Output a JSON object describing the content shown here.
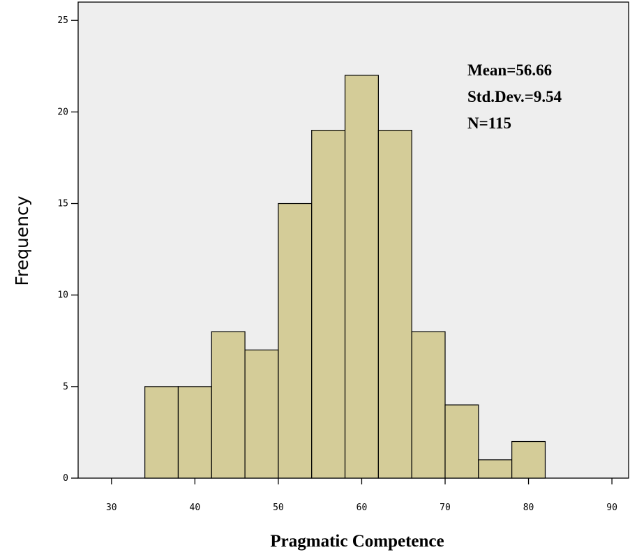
{
  "chart_data": {
    "type": "bar",
    "histogram": true,
    "bin_width": 4,
    "bin_centers": [
      36,
      40,
      44,
      48,
      52,
      56,
      60,
      64,
      68,
      72,
      76,
      80
    ],
    "values": [
      5,
      5,
      8,
      7,
      15,
      19,
      22,
      19,
      8,
      4,
      1,
      2
    ],
    "xlabel": "Pragmatic Competence",
    "ylabel": "Frequency",
    "xlim": [
      26,
      92
    ],
    "ylim": [
      0,
      26
    ],
    "x_ticks": [
      30,
      40,
      50,
      60,
      70,
      80,
      90
    ],
    "y_ticks": [
      0,
      5,
      10,
      15,
      20,
      25
    ],
    "grid": false,
    "bar_color": "#d4cc98",
    "plot_background": "#eeeeee",
    "stats": {
      "mean": "Mean=56.66",
      "std_dev": "Std.Dev.=9.54",
      "n": "N=115"
    }
  }
}
